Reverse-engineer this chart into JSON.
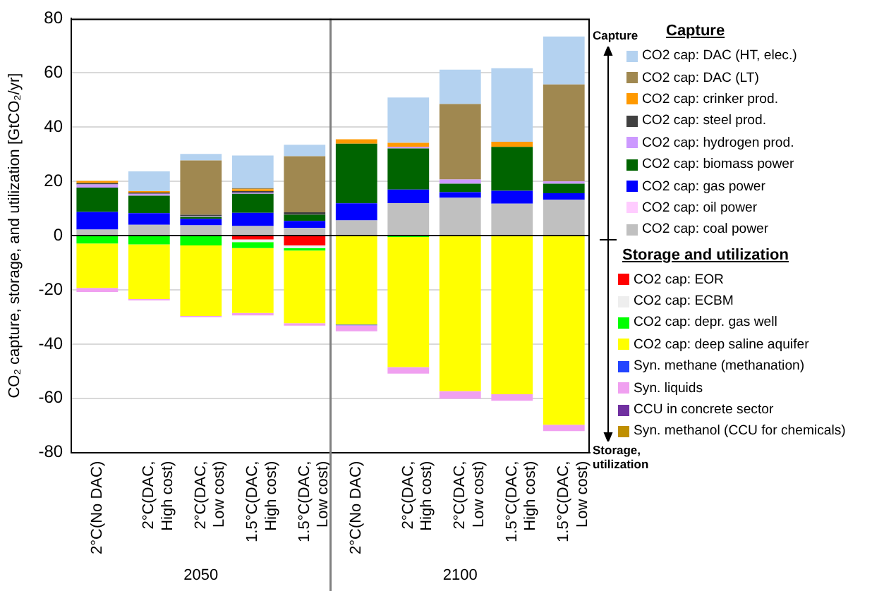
{
  "chart_data": {
    "type": "bar",
    "stacked": true,
    "ylabel": "CO₂ capture, storage, and utilization [GtCO₂/yr]",
    "categories": [
      [
        "2°C(No DAC)"
      ],
      [
        "2°C(DAC,",
        "High cost)"
      ],
      [
        "2°C(DAC,",
        "Low cost)"
      ],
      [
        "1.5°C(DAC,",
        "High cost)"
      ],
      [
        "1.5°C(DAC,",
        "Low cost)"
      ],
      [
        "2°C(No DAC)"
      ],
      [
        "2°C(DAC,",
        "High cost)"
      ],
      [
        "2°C(DAC,",
        "Low cost)"
      ],
      [
        "1.5°C(DAC,",
        "High cost)"
      ],
      [
        "1.5°C(DAC,",
        "Low cost)"
      ]
    ],
    "ylim": [
      -80,
      80
    ],
    "yticks": [
      -80,
      -60,
      -40,
      -20,
      0,
      20,
      40,
      60,
      80
    ],
    "grid": "y",
    "legend": "right",
    "series": [
      {
        "name": "CO2 cap: coal power",
        "color": "#c0c0c0",
        "values": [
          2.2,
          4,
          3.8,
          3.5,
          2.8,
          5.6,
          12,
          13.9,
          11.8,
          13.2
        ]
      },
      {
        "name": "CO2 cap: oil power",
        "color": "#ffccff",
        "values": [
          null,
          null,
          null,
          null,
          null,
          null,
          null,
          null,
          null,
          null
        ]
      },
      {
        "name": "CO2 cap: gas power",
        "color": "#0000ff",
        "values": [
          6.5,
          4.3,
          2.4,
          4.9,
          2.6,
          6.3,
          5,
          2.1,
          4.7,
          2.4
        ]
      },
      {
        "name": "CO2 cap: biomass power",
        "color": "#006400",
        "values": [
          9,
          6.4,
          0.7,
          7,
          2.3,
          22,
          15.1,
          3.1,
          16.2,
          3.5
        ]
      },
      {
        "name": "CO2 cap: hydrogen prod.",
        "color": "#cc99ff",
        "values": [
          1.2,
          0.7,
          0.3,
          0.5,
          null,
          null,
          0.7,
          1.6,
          null,
          0.9
        ]
      },
      {
        "name": "CO2 cap: steel prod.",
        "color": "#404040",
        "values": [
          0.5,
          0.5,
          0.5,
          0.5,
          0.9,
          null,
          null,
          null,
          null,
          null
        ]
      },
      {
        "name": "CO2 cap: crinker prod.",
        "color": "#ff9900",
        "values": [
          0.8,
          0.5,
          null,
          0.7,
          null,
          1.6,
          1.4,
          null,
          1.9,
          null
        ]
      },
      {
        "name": "CO2 cap: DAC (LT)",
        "color": "#a08850",
        "values": [
          null,
          null,
          20,
          0.4,
          20.7,
          null,
          null,
          27.8,
          null,
          35.7
        ]
      },
      {
        "name": "CO2 cap: DAC (HT, elec.)",
        "color": "#b4d2f0",
        "values": [
          null,
          7.3,
          2.4,
          12,
          4.2,
          null,
          16.7,
          12.7,
          27.1,
          17.7
        ]
      },
      {
        "name": "CO2 cap: EOR",
        "color": "#ff0000",
        "values": [
          null,
          null,
          null,
          -1.4,
          -3.6,
          null,
          null,
          null,
          null,
          null
        ]
      },
      {
        "name": "CO2 cap: ECBM",
        "color": "#eeeeee",
        "values": [
          null,
          null,
          null,
          -1,
          -1,
          null,
          null,
          null,
          null,
          null
        ]
      },
      {
        "name": "CO2 cap: depr. gas well",
        "color": "#00ff00",
        "values": [
          -2.9,
          -3.2,
          -3.6,
          -2.2,
          -0.9,
          null,
          -0.5,
          null,
          null,
          null
        ]
      },
      {
        "name": "CO2 cap: deep saline aquifer",
        "color": "#ffff00",
        "values": [
          -16.4,
          -20.2,
          -26,
          -23.9,
          -26.8,
          -32.8,
          -48,
          -57.3,
          -58.5,
          -69.7
        ]
      },
      {
        "name": "Syn. methane (methanation)",
        "color": "#2244ff",
        "values": [
          null,
          null,
          null,
          null,
          null,
          -0.3,
          null,
          null,
          null,
          null
        ]
      },
      {
        "name": "Syn. liquids",
        "color": "#f0a0f0",
        "values": [
          -1.5,
          -0.5,
          -0.5,
          -0.9,
          -0.9,
          -2.2,
          -2.4,
          -2.9,
          -2.4,
          -2.4
        ]
      },
      {
        "name": "CCU in concrete sector",
        "color": "#7030a0",
        "values": [
          null,
          null,
          null,
          null,
          null,
          null,
          null,
          null,
          null,
          null
        ]
      },
      {
        "name": "Syn. methanol (CCU for chemicals)",
        "color": "#bf8f00",
        "values": [
          null,
          null,
          null,
          null,
          null,
          null,
          null,
          null,
          null,
          null
        ]
      }
    ],
    "annotations": [
      "Capture",
      "Capture",
      "Storage and utilization",
      "Storage, utilization",
      "2050",
      "2100"
    ]
  }
}
